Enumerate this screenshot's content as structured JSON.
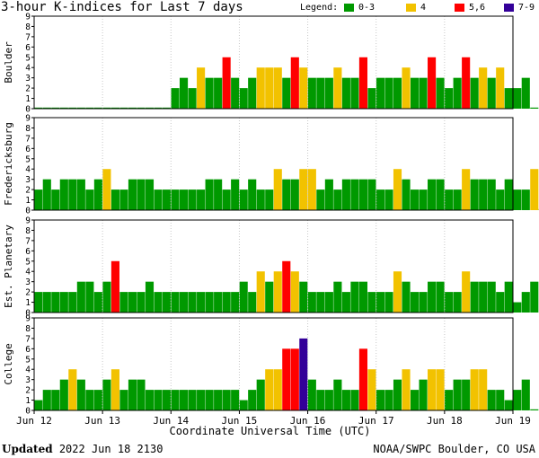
{
  "title": "3-hour K-indices for Last 7 days",
  "footer": {
    "updated_label": "Updated",
    "updated_value": "2022 Jun 18 2130",
    "credit": "NOAA/SWPC Boulder, CO USA"
  },
  "colors": {
    "low": "#009900",
    "moderate": "#f2c200",
    "high": "#ff0000",
    "severe": "#330099"
  },
  "chart_data": {
    "type": "bar",
    "legend": {
      "title": "Legend:",
      "placement": "top-right",
      "entries": [
        {
          "label": "0-3",
          "color": "#009900"
        },
        {
          "label": "4",
          "color": "#f2c200"
        },
        {
          "label": "5,6",
          "color": "#ff0000"
        },
        {
          "label": "7-9",
          "color": "#330099"
        }
      ]
    },
    "xlabel": "Coordinate Universal Time (UTC)",
    "x_ticks": [
      "Jun 12",
      "Jun 13",
      "Jun 14",
      "Jun 15",
      "Jun 16",
      "Jun 17",
      "Jun 18",
      "Jun 19"
    ],
    "ylim": [
      0,
      9
    ],
    "y_ticks": [
      "0",
      "1",
      "2",
      "3",
      "4",
      "5",
      "6",
      "7",
      "8",
      "9"
    ],
    "grid": false,
    "panels": [
      {
        "name": "Boulder",
        "values": [
          0,
          0,
          0,
          0,
          0,
          0,
          0,
          0,
          0,
          0,
          0,
          0,
          0,
          0,
          0,
          0,
          2,
          3,
          2,
          4,
          3,
          3,
          5,
          3,
          2,
          3,
          4,
          4,
          4,
          3,
          5,
          4,
          3,
          3,
          3,
          4,
          3,
          3,
          5,
          2,
          3,
          3,
          3,
          4,
          3,
          3,
          5,
          3,
          2,
          3,
          5,
          3,
          4,
          3,
          4,
          2,
          2,
          3,
          0
        ]
      },
      {
        "name": "Fredericksburg",
        "values": [
          2,
          3,
          2,
          3,
          3,
          3,
          2,
          3,
          4,
          2,
          2,
          3,
          3,
          3,
          2,
          2,
          2,
          2,
          2,
          2,
          3,
          3,
          2,
          3,
          2,
          3,
          2,
          2,
          4,
          3,
          3,
          4,
          4,
          2,
          3,
          2,
          3,
          3,
          3,
          3,
          2,
          2,
          4,
          3,
          2,
          2,
          3,
          3,
          2,
          2,
          4,
          3,
          3,
          3,
          2,
          3,
          2,
          2,
          4,
          0
        ]
      },
      {
        "name": "Est. Planetary",
        "values": [
          2,
          2,
          2,
          2,
          2,
          3,
          3,
          2,
          3,
          5,
          2,
          2,
          2,
          3,
          2,
          2,
          2,
          2,
          2,
          2,
          2,
          2,
          2,
          2,
          3,
          2,
          4,
          3,
          4,
          5,
          4,
          3,
          2,
          2,
          2,
          3,
          2,
          3,
          3,
          2,
          2,
          2,
          4,
          3,
          2,
          2,
          3,
          3,
          2,
          2,
          4,
          3,
          3,
          3,
          2,
          3,
          1,
          2,
          3
        ]
      },
      {
        "name": "College",
        "values": [
          1,
          2,
          2,
          3,
          4,
          3,
          2,
          2,
          3,
          4,
          2,
          3,
          3,
          2,
          2,
          2,
          2,
          2,
          2,
          2,
          2,
          2,
          2,
          2,
          1,
          2,
          3,
          4,
          4,
          6,
          6,
          7,
          3,
          2,
          2,
          3,
          2,
          2,
          6,
          4,
          2,
          2,
          3,
          4,
          2,
          3,
          4,
          4,
          2,
          3,
          3,
          4,
          4,
          2,
          2,
          1,
          2,
          3,
          0
        ]
      }
    ]
  }
}
